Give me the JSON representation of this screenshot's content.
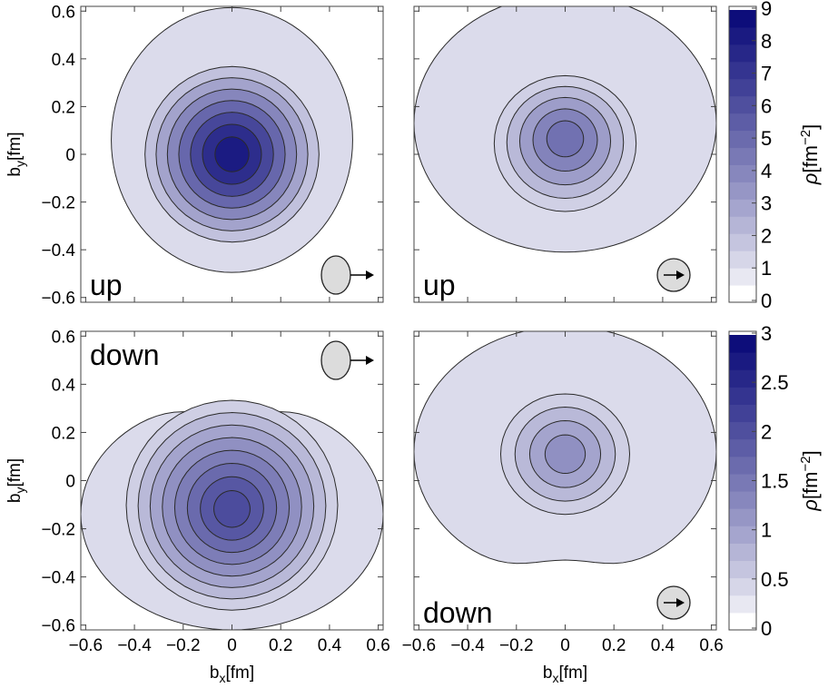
{
  "chart_data": [
    {
      "type": "contour",
      "panel": "top-left",
      "label": "up",
      "polarization_icon": "circle-arrow-right-outside",
      "x": {
        "ticks": [],
        "range": [
          -0.62,
          0.62
        ]
      },
      "y": {
        "label_main": "b",
        "label_sub": "y",
        "label_unit": "[fm]",
        "ticks": [
          "0.6",
          "0.4",
          "0.2",
          "0",
          "−0.2",
          "−0.4",
          "−0.6"
        ],
        "tick_values": [
          0.6,
          0.4,
          0.2,
          0,
          -0.2,
          -0.4,
          -0.6
        ],
        "range": [
          -0.62,
          0.62
        ]
      },
      "peak": {
        "x": 0.0,
        "y": 0.0,
        "value": 8.5
      },
      "contour_levels": [
        0.6,
        1.8,
        2.9,
        4.0,
        5.2,
        6.5,
        7.6,
        8.4
      ],
      "colorbar": "top",
      "orientation": "vertical-elongated"
    },
    {
      "type": "contour",
      "panel": "top-right",
      "label": "up",
      "polarization_icon": "circle-arrow-right-inside",
      "x": {
        "ticks": [],
        "range": [
          -0.62,
          0.62
        ]
      },
      "y": {
        "ticks": [],
        "range": [
          -0.62,
          0.62
        ]
      },
      "peak": {
        "x": 0.0,
        "y": 0.02,
        "value": 5.0
      },
      "contour_levels": [
        0.6,
        1.3,
        2.1,
        3.1,
        4.1,
        4.8
      ],
      "colorbar": "top",
      "orientation": "horizontal-elongated"
    },
    {
      "type": "contour",
      "panel": "bottom-left",
      "label": "down",
      "polarization_icon": "circle-arrow-right-outside",
      "x": {
        "label_main": "b",
        "label_sub": "x",
        "label_unit": "[fm]",
        "ticks": [
          "−0.6",
          "−0.4",
          "−0.2",
          "0",
          "0.2",
          "0.4",
          "0.6"
        ],
        "tick_values": [
          -0.6,
          -0.4,
          -0.2,
          0,
          0.2,
          0.4,
          0.6
        ],
        "range": [
          -0.62,
          0.62
        ]
      },
      "y": {
        "label_main": "b",
        "label_sub": "y",
        "label_unit": "[fm]",
        "ticks": [
          "0.6",
          "0.4",
          "0.2",
          "0",
          "−0.2",
          "−0.4",
          "−0.6"
        ],
        "tick_values": [
          0.6,
          0.4,
          0.2,
          0,
          -0.2,
          -0.4,
          -0.6
        ],
        "range": [
          -0.62,
          0.62
        ]
      },
      "peak": {
        "x": 0.0,
        "y": -0.1,
        "value": 2.1
      },
      "contour_levels": [
        0.2,
        0.45,
        0.7,
        0.95,
        1.2,
        1.45,
        1.7,
        1.95,
        2.1
      ],
      "colorbar": "bottom",
      "orientation": "vertical-elongated"
    },
    {
      "type": "contour",
      "panel": "bottom-right",
      "label": "down",
      "polarization_icon": "circle-arrow-right-inside",
      "x": {
        "label_main": "b",
        "label_sub": "x",
        "label_unit": "[fm]",
        "ticks": [
          "−0.6",
          "−0.4",
          "−0.2",
          "0",
          "0.2",
          "0.4",
          "0.6"
        ],
        "tick_values": [
          -0.6,
          -0.4,
          -0.2,
          0,
          0.2,
          0.4,
          0.6
        ],
        "range": [
          -0.62,
          0.62
        ]
      },
      "y": {
        "ticks": [],
        "range": [
          -0.62,
          0.62
        ]
      },
      "peak": {
        "x": 0.0,
        "y": 0.11,
        "value": 1.3
      },
      "contour_levels": [
        0.2,
        0.45,
        0.7,
        0.95,
        1.2
      ],
      "colorbar": "bottom",
      "orientation": "horizontal-elongated"
    }
  ],
  "colorbars": [
    {
      "id": "top",
      "label_main": "ρ[fm",
      "label_sup": "−2",
      "label_end": "]",
      "ticks": [
        "9",
        "8",
        "7",
        "6",
        "5",
        "4",
        "3",
        "2",
        "1",
        "0"
      ],
      "tick_values": [
        9,
        8,
        7,
        6,
        5,
        4,
        3,
        2,
        1,
        0
      ],
      "range": [
        0,
        9
      ],
      "bands": 16
    },
    {
      "id": "bottom",
      "label_main": "ρ[fm",
      "label_sup": "−2",
      "label_end": "]",
      "ticks": [
        "3",
        "2.5",
        "2",
        "1.5",
        "1",
        "0.5",
        "0"
      ],
      "tick_values": [
        3,
        2.5,
        2,
        1.5,
        1,
        0.5,
        0
      ],
      "range": [
        0,
        3
      ],
      "bands": 16
    }
  ],
  "colors": {
    "low": "#ffffff",
    "high": "#0d0d7a",
    "contour_line": "#2a2a2a",
    "icon_fill": "#dcdcdc"
  }
}
